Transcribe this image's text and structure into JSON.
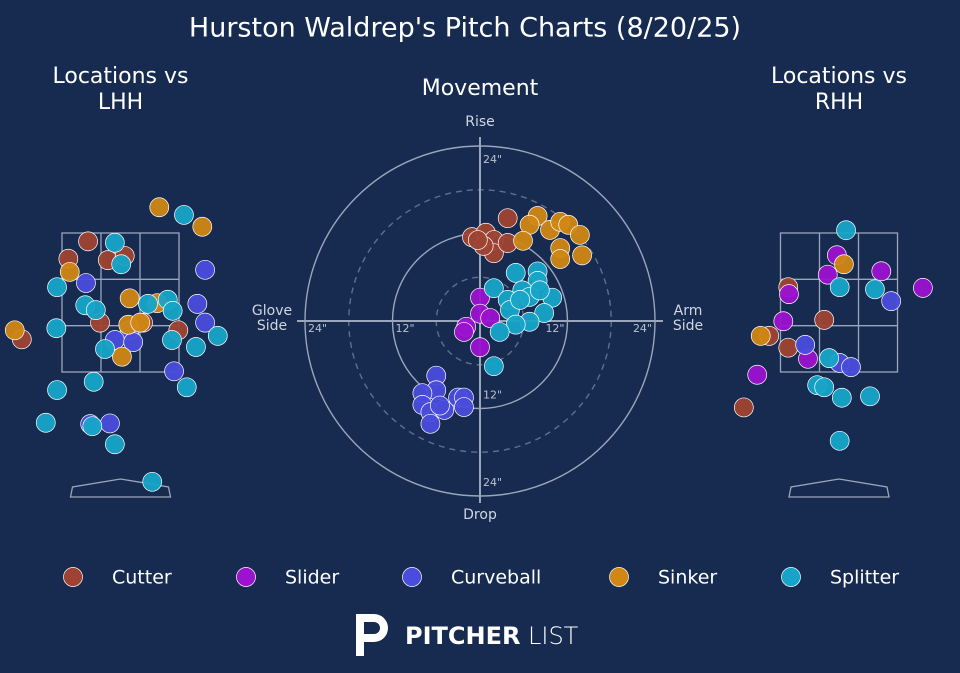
{
  "title": "Hurston Waldrep's Pitch Charts (8/20/25)",
  "chart_data": [
    {
      "type": "location",
      "title": "Locations vs LHH",
      "zone": {
        "x": [
          -0.83,
          0.83
        ],
        "z": [
          1.5,
          3.5
        ]
      },
      "series": [
        {
          "name": "Cutter",
          "color": "#9e4331",
          "x": [
            -0.46,
            -0.74,
            -0.18,
            0.06,
            -0.29,
            0.82,
            -1.4,
            0.32
          ],
          "y": [
            3.38,
            3.13,
            3.11,
            3.17,
            2.21,
            2.1,
            1.97,
            2.21
          ]
        },
        {
          "name": "Slider",
          "color": "#9b12cf",
          "x": [],
          "y": []
        },
        {
          "name": "Curveball",
          "color": "#4a4cdb",
          "x": [
            1.2,
            -0.49,
            1.09,
            1.2,
            0.13,
            -0.08,
            0.18,
            0.76,
            -0.43,
            -0.15
          ],
          "y": [
            2.97,
            2.78,
            2.48,
            2.21,
            2.1,
            1.96,
            1.93,
            1.51,
            0.75,
            0.76
          ]
        },
        {
          "name": "Sinker",
          "color": "#d18714",
          "x": [
            0.55,
            1.16,
            -0.72,
            0.13,
            0.52,
            0.11,
            0.28,
            0.02,
            -1.5
          ],
          "y": [
            3.87,
            3.59,
            2.94,
            2.56,
            2.49,
            2.18,
            2.21,
            1.72,
            2.1
          ]
        },
        {
          "name": "Splitter",
          "color": "#16a5c8",
          "x": [
            0.9,
            -0.08,
            0.01,
            -0.9,
            -0.5,
            -0.35,
            0.39,
            0.67,
            0.74,
            -0.91,
            0.73,
            1.07,
            1.38,
            -0.22,
            -0.38,
            -0.9,
            0.94,
            -1.06,
            -0.4,
            -0.08,
            0.45
          ],
          "y": [
            3.76,
            3.36,
            3.05,
            2.72,
            2.46,
            2.39,
            2.48,
            2.54,
            2.38,
            2.13,
            1.96,
            1.86,
            2.02,
            1.83,
            1.36,
            1.24,
            1.28,
            0.77,
            0.72,
            0.46,
            -0.08
          ]
        }
      ]
    },
    {
      "type": "movement",
      "title": "Movement",
      "labels": {
        "top": "Rise",
        "bottom": "Drop",
        "left": "Glove Side",
        "right": "Arm Side"
      },
      "rings": [
        6,
        12,
        18,
        24
      ],
      "ticks": [
        {
          "value": 12,
          "label": "12\""
        },
        {
          "value": 24,
          "label": "24\""
        }
      ],
      "series": [
        {
          "name": "Cutter",
          "color": "#9e4331",
          "x": [
            -1.1,
            0.8,
            1.9,
            3.8,
            1.9,
            0.5,
            -0.3,
            3.8
          ],
          "y": [
            11.5,
            12.1,
            11.1,
            14.1,
            9.3,
            10.3,
            11.1,
            10.7
          ]
        },
        {
          "name": "Slider",
          "color": "#9b12cf",
          "x": [
            0,
            0,
            -1.9,
            -2.2,
            0,
            1.4
          ],
          "y": [
            3.2,
            1.0,
            -0.8,
            -1.5,
            -3.6,
            0.4
          ]
        },
        {
          "name": "Curveball",
          "color": "#4a4cdb",
          "x": [
            -6.0,
            -6.0,
            -7.9,
            -7.9,
            -6.8,
            -6.8,
            -4.9,
            -3.0,
            -2.2,
            -2.2,
            -5.5
          ],
          "y": [
            -7.5,
            -9.5,
            -9.9,
            -11.5,
            -12.5,
            -14.1,
            -12.2,
            -10.5,
            -10.5,
            -11.8,
            -11.6
          ]
        },
        {
          "name": "Sinker",
          "color": "#d18714",
          "x": [
            7.9,
            6.8,
            9.6,
            11.0,
            12.1,
            13.7,
            5.9,
            11.0,
            11.0,
            14.0
          ],
          "y": [
            14.4,
            13.2,
            12.5,
            13.6,
            13.2,
            11.8,
            11.0,
            10.0,
            8.5,
            9.0
          ]
        },
        {
          "name": "Splitter",
          "color": "#16a5c8",
          "x": [
            4.9,
            1.9,
            7.9,
            7.9,
            5.8,
            3.8,
            9.9,
            4.1,
            6.8,
            8.8,
            6.8,
            4.9,
            2.7,
            1.9,
            5.5,
            8.2
          ],
          "y": [
            6.6,
            4.5,
            6.8,
            5.5,
            4.2,
            2.9,
            3.2,
            1.5,
            3.3,
            1.1,
            -0.1,
            -0.5,
            -1.5,
            -6.2,
            2.9,
            4.2
          ]
        }
      ]
    },
    {
      "type": "location",
      "title": "Locations vs RHH",
      "zone": {
        "x": [
          -0.83,
          0.83
        ],
        "z": [
          1.5,
          3.5
        ]
      },
      "series": [
        {
          "name": "Cutter",
          "color": "#9e4331",
          "x": [
            -0.72,
            -0.21,
            -0.99,
            -0.72,
            -1.35
          ],
          "y": [
            2.72,
            2.25,
            2.02,
            1.85,
            0.99
          ]
        },
        {
          "name": "Slider",
          "color": "#9b12cf",
          "x": [
            -0.03,
            -0.16,
            0.6,
            1.19,
            -0.71,
            -0.79,
            -0.44,
            -1.16
          ],
          "y": [
            3.18,
            2.9,
            2.95,
            2.71,
            2.62,
            2.23,
            1.69,
            1.46
          ]
        },
        {
          "name": "Curveball",
          "color": "#4a4cdb",
          "x": [
            0.74,
            -0.48,
            0.01,
            0.17
          ],
          "y": [
            2.52,
            1.89,
            1.63,
            1.57
          ]
        },
        {
          "name": "Sinker",
          "color": "#d18714",
          "x": [
            0.07,
            -1.11
          ],
          "y": [
            3.05,
            2.02
          ]
        },
        {
          "name": "Splitter",
          "color": "#16a5c8",
          "x": [
            0.1,
            0.01,
            0.51,
            -0.14,
            -0.31,
            -0.21,
            0.04,
            0.44,
            0.01
          ],
          "y": [
            3.54,
            2.72,
            2.69,
            1.7,
            1.31,
            1.28,
            1.13,
            1.15,
            0.51
          ]
        }
      ]
    }
  ],
  "logo": {
    "bold": "PITCHER",
    "light": "LIST"
  }
}
